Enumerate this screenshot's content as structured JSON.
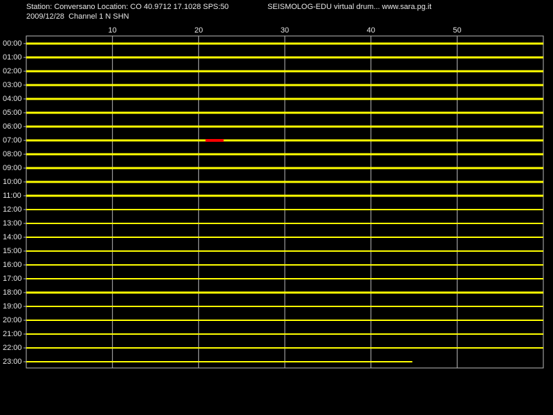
{
  "header": {
    "station": "Station: Conversano Location: CO 40.9712 17.1028 SPS:50",
    "title": "SEISMOLOG-EDU virtual drum... www.sara.pg.it",
    "date_channel": "2009/12/28  Channel 1 N SHN"
  },
  "chart_data": {
    "type": "drum",
    "xlim": [
      0,
      60
    ],
    "xticks": [
      10,
      20,
      30,
      40,
      50
    ],
    "grid": true,
    "rows": [
      "00:00",
      "01:00",
      "02:00",
      "03:00",
      "04:00",
      "05:00",
      "06:00",
      "07:00",
      "08:00",
      "09:00",
      "10:00",
      "11:00",
      "12:00",
      "13:00",
      "14:00",
      "15:00",
      "16:00",
      "17:00",
      "18:00",
      "19:00",
      "20:00",
      "21:00",
      "22:00",
      "23:00"
    ],
    "trace_color": "#ffff00",
    "event": {
      "row": 7,
      "start": 20.8,
      "end": 22.9,
      "color": "#ff0000"
    },
    "last_trace_end": 44.8
  }
}
